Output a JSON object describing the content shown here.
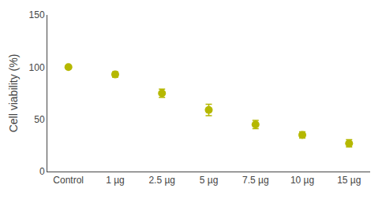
{
  "chart_data": {
    "type": "scatter",
    "categories": [
      "Control",
      "1 µg",
      "2.5 µg",
      "5 µg",
      "7.5 µg",
      "10 µg",
      "15 µg"
    ],
    "values": [
      100,
      93,
      75,
      59,
      45,
      35,
      27
    ],
    "errors": [
      0.3,
      2.5,
      4.0,
      5.5,
      4.0,
      3.0,
      3.5
    ],
    "color": "#b5b800",
    "marker": "circle",
    "ylabel": "Cell viability (%)",
    "ylim": [
      0,
      150
    ],
    "yticks": [
      0,
      50,
      100,
      150
    ],
    "grid": false
  }
}
